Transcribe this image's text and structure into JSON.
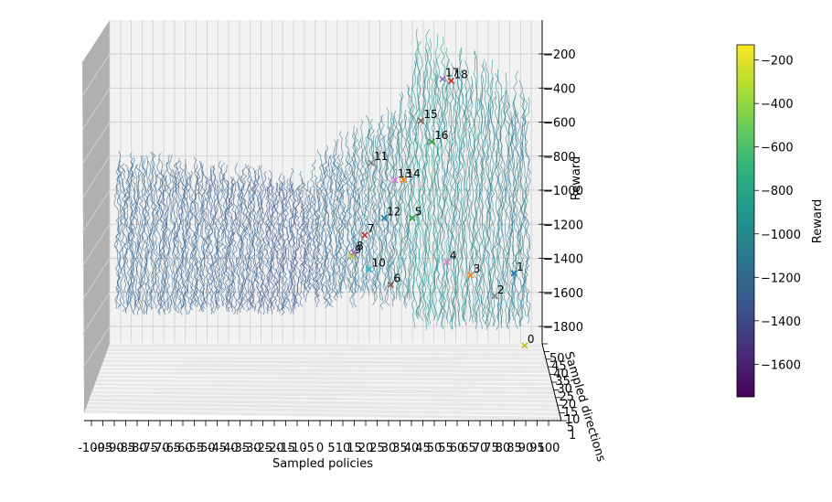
{
  "chart_data": {
    "type": "surface-lines-3d",
    "xlabel": "Sampled policies",
    "ylabel": "Sampled directions",
    "zlabel": "Reward",
    "xlim": [
      -100,
      100
    ],
    "zlim": [
      -1850,
      -150
    ],
    "z_ticks": [
      -200,
      -400,
      -600,
      -800,
      -1000,
      -1200,
      -1400,
      -1600,
      -1800
    ],
    "x_tick_labels": [
      "-100",
      "-95",
      "-90",
      "-85",
      "-80",
      "-75",
      "-70",
      "-65",
      "-60",
      "-55",
      "-50",
      "-45",
      "-40",
      "-35",
      "-30",
      "-25",
      "-20",
      "-15",
      "-10",
      "-5",
      "0",
      "5",
      "10",
      "15",
      "20",
      "25",
      "30",
      "35",
      "40",
      "45",
      "50",
      "55",
      "60",
      "65",
      "70",
      "75",
      "80",
      "85",
      "90",
      "95",
      "100"
    ],
    "y_tick_labels": [
      "1",
      "5",
      "10",
      "15",
      "20",
      "25",
      "30",
      "35",
      "40",
      "45",
      "50"
    ],
    "colorbar": {
      "label": "Reward",
      "range": [
        -1750,
        -130
      ],
      "ticks": [
        -200,
        -400,
        -600,
        -800,
        -1000,
        -1200,
        -1400,
        -1600
      ],
      "colormap": "viridis"
    },
    "markers": [
      {
        "label": "0",
        "x": 97,
        "z": -1840,
        "color": "#bcbd22"
      },
      {
        "label": "1",
        "x": 92,
        "z": -1460,
        "color": "#1f77b4"
      },
      {
        "label": "2",
        "x": 83,
        "z": -1580,
        "color": "#7f7f7f"
      },
      {
        "label": "3",
        "x": 72,
        "z": -1470,
        "color": "#ff7f0e"
      },
      {
        "label": "4",
        "x": 61,
        "z": -1400,
        "color": "#e377c2"
      },
      {
        "label": "5",
        "x": 45,
        "z": -1170,
        "color": "#2ca02c"
      },
      {
        "label": "6",
        "x": 35,
        "z": -1520,
        "color": "#8c564b"
      },
      {
        "label": "7",
        "x": 23,
        "z": -1260,
        "color": "#d62728"
      },
      {
        "label": "8",
        "x": 18,
        "z": -1350,
        "color": "#9467bd"
      },
      {
        "label": "9",
        "x": 17,
        "z": -1370,
        "color": "#bcbd22"
      },
      {
        "label": "10",
        "x": 25,
        "z": -1440,
        "color": "#17becf"
      },
      {
        "label": "11",
        "x": 26,
        "z": -880,
        "color": "#7f7f7f"
      },
      {
        "label": "12",
        "x": 32,
        "z": -1170,
        "color": "#1f77b4"
      },
      {
        "label": "13",
        "x": 37,
        "z": -970,
        "color": "#e377c2"
      },
      {
        "label": "14",
        "x": 41,
        "z": -970,
        "color": "#ff7f0e"
      },
      {
        "label": "15",
        "x": 49,
        "z": -660,
        "color": "#8c564b"
      },
      {
        "label": "16",
        "x": 54,
        "z": -770,
        "color": "#2ca02c"
      },
      {
        "label": "17",
        "x": 59,
        "z": -440,
        "color": "#9467bd"
      },
      {
        "label": "18",
        "x": 63,
        "z": -450,
        "color": "#d62728"
      }
    ]
  }
}
